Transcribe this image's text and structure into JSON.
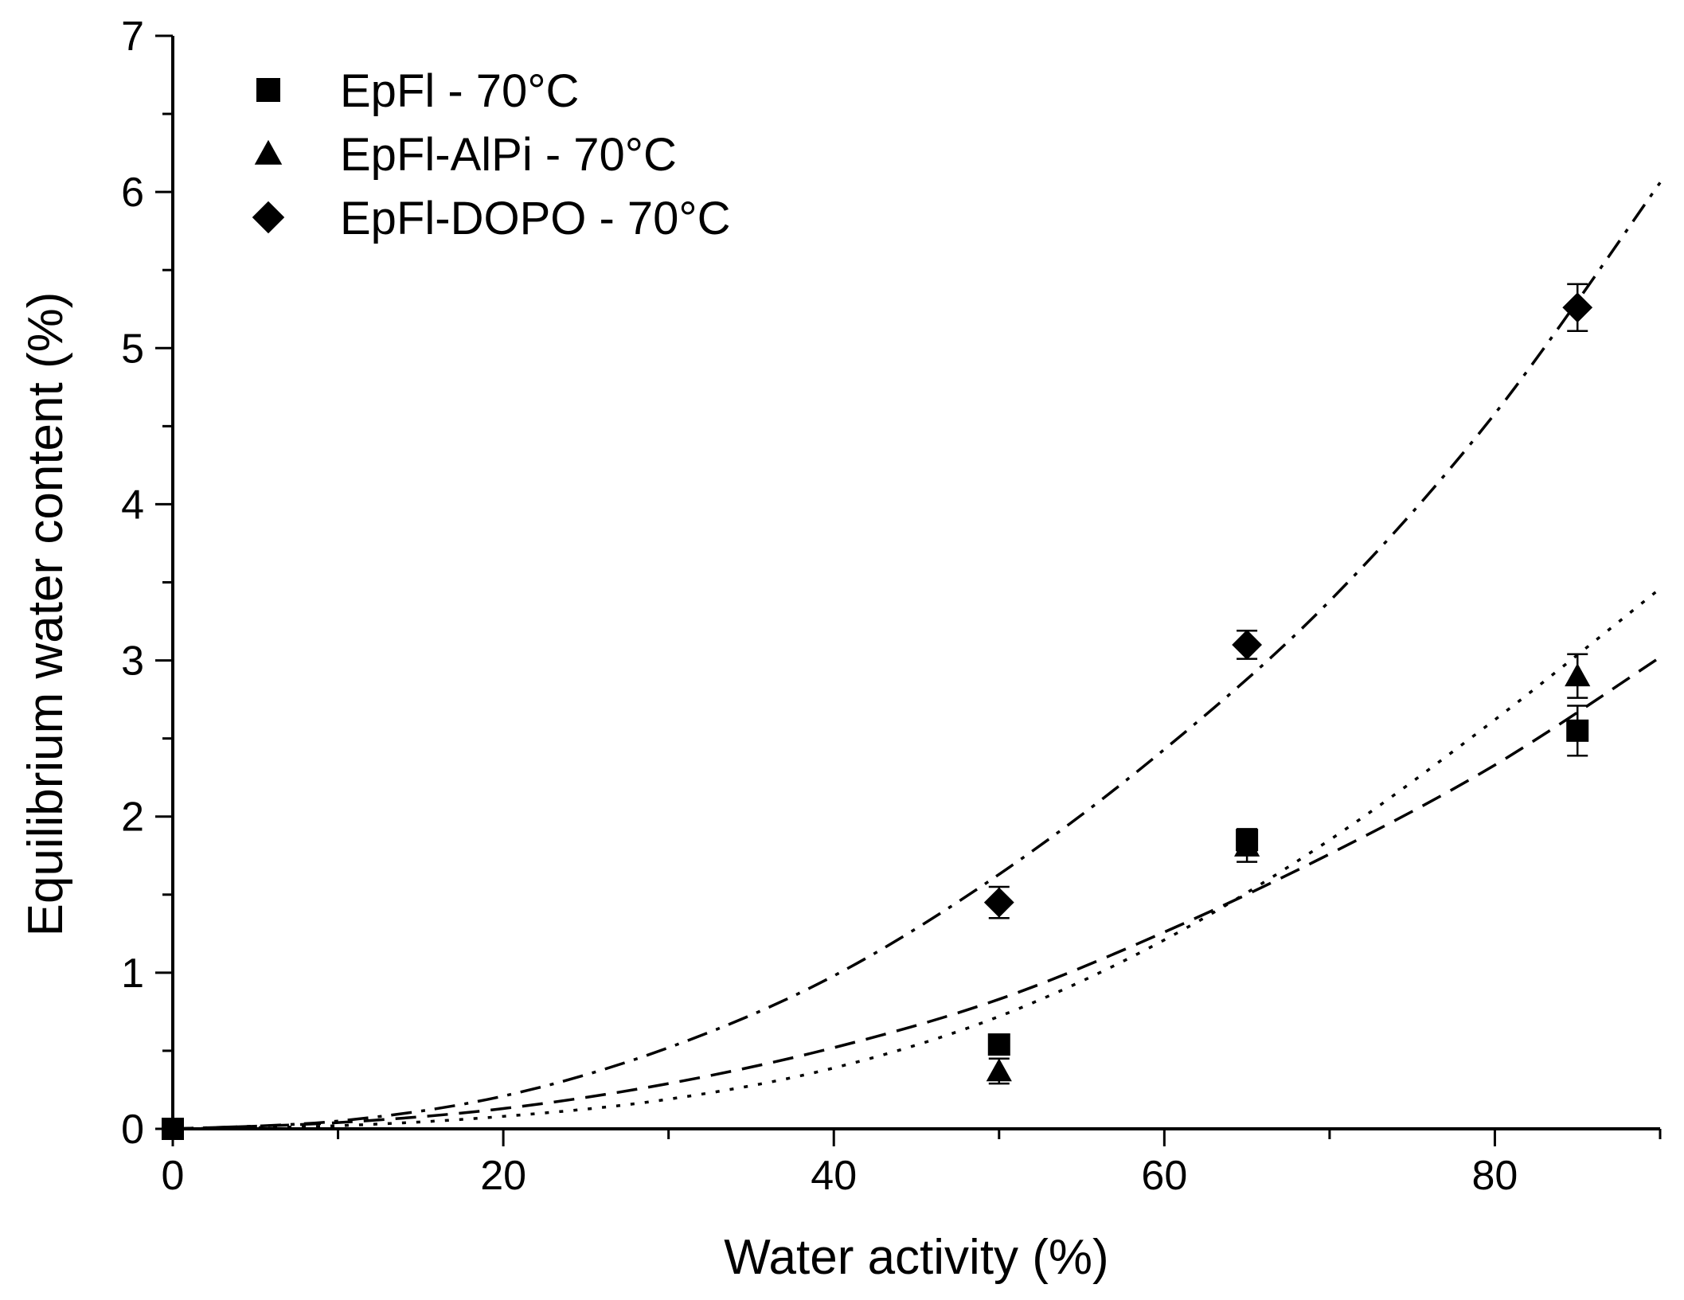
{
  "chart_data": {
    "type": "scatter",
    "title": "",
    "xlabel": "Water activity (%)",
    "ylabel": "Equilibrium water content (%)",
    "xlim": [
      0,
      90
    ],
    "ylim": [
      0,
      7
    ],
    "xticks": [
      0,
      20,
      40,
      60,
      80
    ],
    "yticks": [
      0,
      1,
      2,
      3,
      4,
      5,
      6,
      7
    ],
    "x_tick_labels": [
      "0",
      "20",
      "40",
      "60",
      "80"
    ],
    "y_tick_labels": [
      "0",
      "1",
      "2",
      "3",
      "4",
      "5",
      "6",
      "7"
    ],
    "grid": false,
    "legend_position": "top-left",
    "series": [
      {
        "name": "EpFl - 70°C",
        "marker": "square",
        "points": [
          {
            "x": 0,
            "y": 0.0,
            "err": 0
          },
          {
            "x": 50,
            "y": 0.54,
            "err": 0.05
          },
          {
            "x": 65,
            "y": 1.85,
            "err": 0.07
          },
          {
            "x": 85,
            "y": 2.55,
            "err": 0.16
          }
        ],
        "fit": {
          "style": "dashed",
          "x": [
            0,
            10,
            20,
            30,
            40,
            50,
            60,
            70,
            80,
            90
          ],
          "y": [
            0,
            0.04,
            0.13,
            0.29,
            0.52,
            0.83,
            1.26,
            1.76,
            2.33,
            3.02
          ]
        }
      },
      {
        "name": "EpFl-AlPi - 70°C",
        "marker": "triangle",
        "points": [
          {
            "x": 50,
            "y": 0.37,
            "err": 0.08
          },
          {
            "x": 65,
            "y": 1.81,
            "err": 0.1
          },
          {
            "x": 85,
            "y": 2.9,
            "err": 0.14
          }
        ],
        "fit": {
          "style": "dotted",
          "x": [
            0,
            10,
            20,
            30,
            40,
            50,
            60,
            70,
            80,
            90
          ],
          "y": [
            0,
            0.02,
            0.08,
            0.19,
            0.39,
            0.72,
            1.21,
            1.85,
            2.62,
            3.46
          ]
        }
      },
      {
        "name": "EpFl-DOPO - 70°C",
        "marker": "diamond",
        "points": [
          {
            "x": 50,
            "y": 1.45,
            "err": 0.1
          },
          {
            "x": 65,
            "y": 3.1,
            "err": 0.09
          },
          {
            "x": 85,
            "y": 5.26,
            "err": 0.15
          }
        ],
        "fit": {
          "style": "dash-dot",
          "x": [
            0,
            10,
            20,
            30,
            40,
            50,
            60,
            70,
            80,
            90
          ],
          "y": [
            0,
            0.05,
            0.21,
            0.52,
            0.98,
            1.63,
            2.43,
            3.38,
            4.58,
            6.06
          ]
        }
      }
    ]
  }
}
